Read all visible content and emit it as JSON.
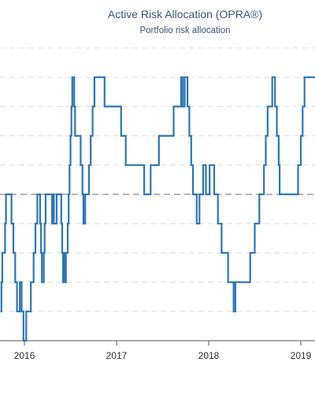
{
  "title": "Active Risk Allocation (OPRA®)",
  "subtitle": "Portfolio risk allocation",
  "chart_data": {
    "type": "line",
    "title": "Active Risk Allocation (OPRA®)",
    "subtitle": "Portfolio risk allocation",
    "xlabel": "",
    "ylabel": "",
    "grid": true,
    "x_tick_labels": [
      "2016",
      "2017",
      "2018",
      "2019"
    ],
    "y_levels": 10,
    "reference_line": 5,
    "series": [
      {
        "color": "#2e75b6",
        "x": [
          2015.74,
          2015.75,
          2015.76,
          2015.79,
          2015.8,
          2015.84,
          2015.86,
          2015.88,
          2015.9,
          2015.92,
          2015.95,
          2015.97,
          2015.99,
          2016.01,
          2016.02,
          2016.04,
          2016.07,
          2016.1,
          2016.12,
          2016.14,
          2016.16,
          2016.17,
          2016.18,
          2016.19,
          2016.2,
          2016.21,
          2016.22,
          2016.23,
          2016.24,
          2016.3,
          2016.31,
          2016.32,
          2016.34,
          2016.35,
          2016.39,
          2016.4,
          2016.41,
          2016.42,
          2016.43,
          2016.44,
          2016.45,
          2016.47,
          2016.48,
          2016.49,
          2016.5,
          2016.51,
          2016.52,
          2016.53,
          2016.54,
          2016.55,
          2016.59,
          2016.61,
          2016.63,
          2016.64,
          2016.66,
          2016.7,
          2016.72,
          2016.74,
          2016.76,
          2016.8,
          2016.81,
          2016.87,
          2017.05,
          2017.1,
          2017.28,
          2017.3,
          2017.34,
          2017.37,
          2017.46,
          2017.62,
          2017.7,
          2017.72,
          2017.74,
          2017.77,
          2017.79,
          2017.81,
          2017.83,
          2017.85,
          2017.87,
          2017.9,
          2017.92,
          2017.94,
          2017.97,
          2017.99,
          2018.01,
          2018.06,
          2018.09,
          2018.1,
          2018.14,
          2018.21,
          2018.25,
          2018.27,
          2018.29,
          2018.45,
          2018.5,
          2018.55,
          2018.6,
          2018.62,
          2018.64,
          2018.69,
          2018.72,
          2018.74,
          2018.76,
          2018.77,
          2018.92,
          2018.93,
          2018.95,
          2018.97,
          2019.0,
          2019.02,
          2019.04,
          2019.07,
          2019.1,
          2019.2
        ],
        "values": [
          1,
          2,
          3,
          4,
          5,
          5,
          4,
          3,
          2,
          1,
          2,
          1,
          0,
          0,
          1,
          1,
          2,
          3,
          4,
          5,
          5,
          4,
          3,
          2,
          2,
          3,
          4,
          5,
          5,
          4,
          5,
          4,
          4,
          5,
          5,
          4,
          3,
          2,
          3,
          2,
          3,
          4,
          5,
          6,
          7,
          8,
          9,
          9,
          8,
          7,
          7,
          6,
          5,
          4,
          5,
          6,
          7,
          8,
          9,
          9,
          9,
          8,
          7,
          6,
          6,
          5,
          5,
          6,
          7,
          8,
          9,
          8,
          9,
          8,
          7,
          6,
          5,
          5,
          4,
          5,
          5,
          6,
          5,
          5,
          6,
          5,
          5,
          4,
          3,
          2,
          2,
          1,
          2,
          3,
          4,
          5,
          6,
          7,
          8,
          9,
          8,
          7,
          6,
          5,
          5,
          5,
          5,
          6,
          7,
          8,
          9,
          9,
          9,
          9
        ]
      }
    ]
  }
}
